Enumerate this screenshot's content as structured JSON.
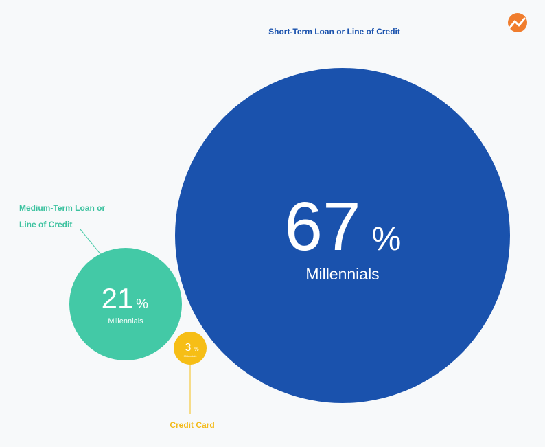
{
  "brand": {
    "logo": "trend-up-logo",
    "logo_color": "#f07d2d"
  },
  "chart_data": {
    "type": "bubble",
    "title": "",
    "unit": "%",
    "series": [
      {
        "name": "Short-Term Loan or Line of Credit",
        "label_lines": [
          "Short-Term Loan or Line of Credit"
        ],
        "value": 67,
        "value_text": "67",
        "unit": "%",
        "sublabel": "Millennials",
        "color": "#1a52ad",
        "label_color": "#1a52ad"
      },
      {
        "name": "Medium-Term Loan or Line of Credit",
        "label_lines": [
          "Medium-Term Loan or",
          "Line of Credit"
        ],
        "value": 21,
        "value_text": "21",
        "unit": "%",
        "sublabel": "Millennials",
        "color": "#43c9a6",
        "label_color": "#3cc29f"
      },
      {
        "name": "Credit Card",
        "label_lines": [
          "Credit Card"
        ],
        "value": 3,
        "value_text": "3",
        "unit": "%",
        "sublabel": "Millennials",
        "color": "#f6be16",
        "label_color": "#f3ba18"
      }
    ]
  }
}
